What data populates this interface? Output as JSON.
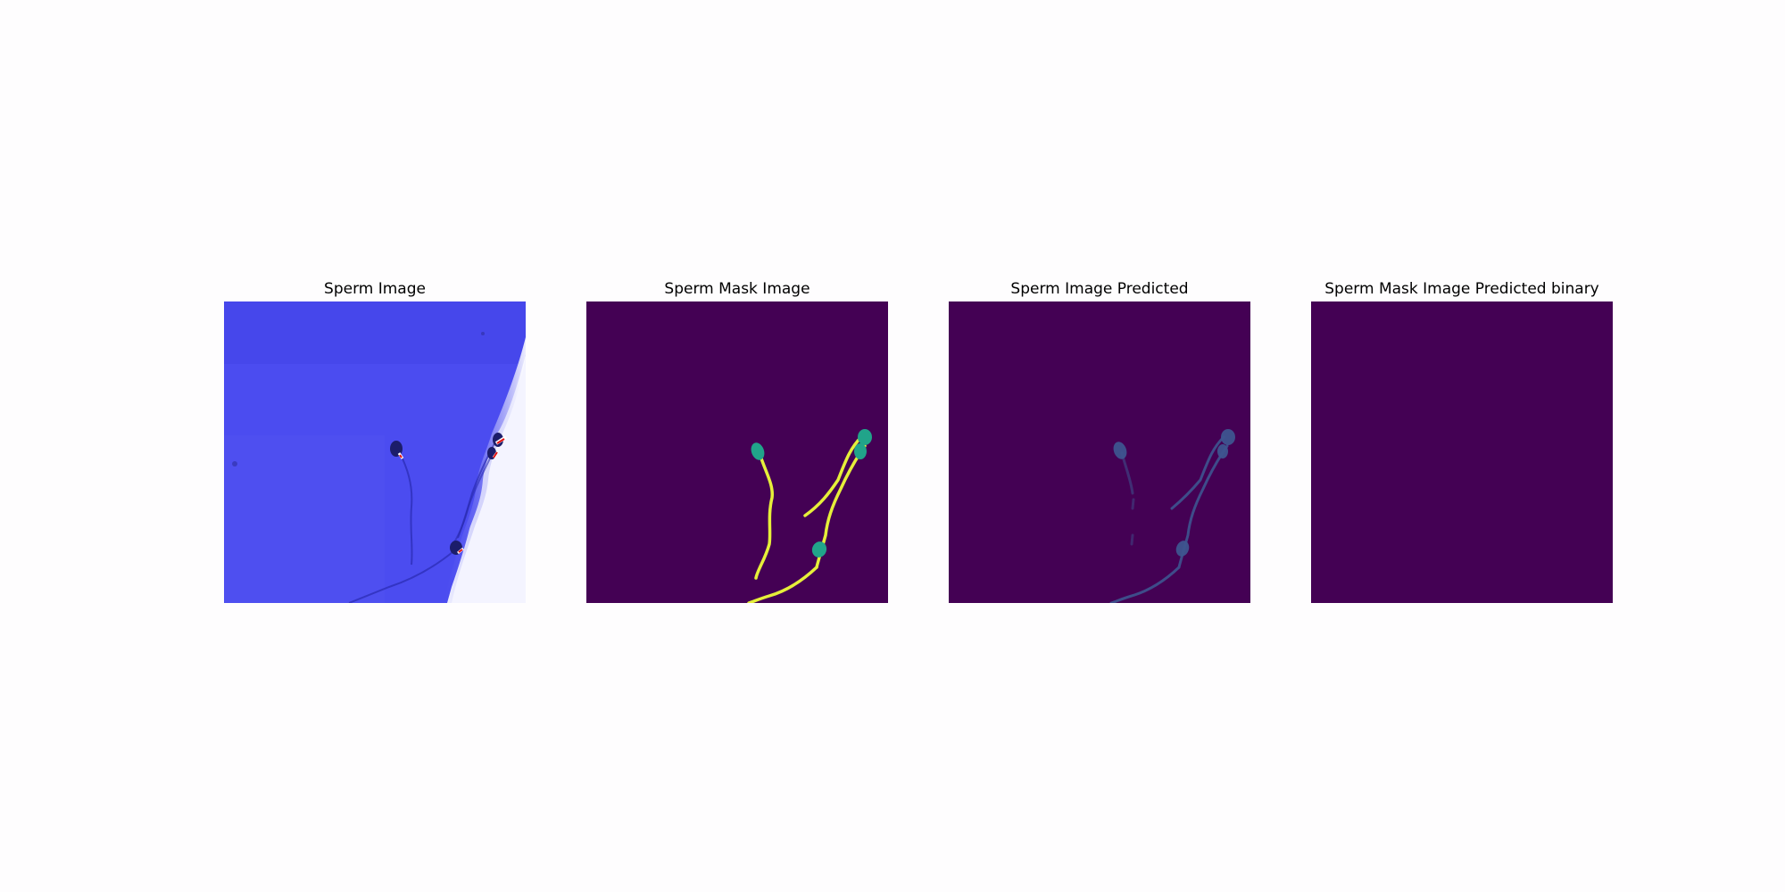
{
  "figure": {
    "panels": [
      {
        "title": "Sperm Image"
      },
      {
        "title": "Sperm Mask Image"
      },
      {
        "title": "Sperm Image Predicted"
      },
      {
        "title": "Sperm Mask Image Predicted binary"
      }
    ],
    "colors": {
      "raw_background": "#4b4cf0",
      "raw_bright_region": "#f4f4ff",
      "mask_background": "#440154",
      "mask_head": "#21a48a",
      "mask_tail": "#e6ef3a",
      "pred_trace": "#3e5590",
      "pred_binary_fill": "#440154"
    }
  }
}
